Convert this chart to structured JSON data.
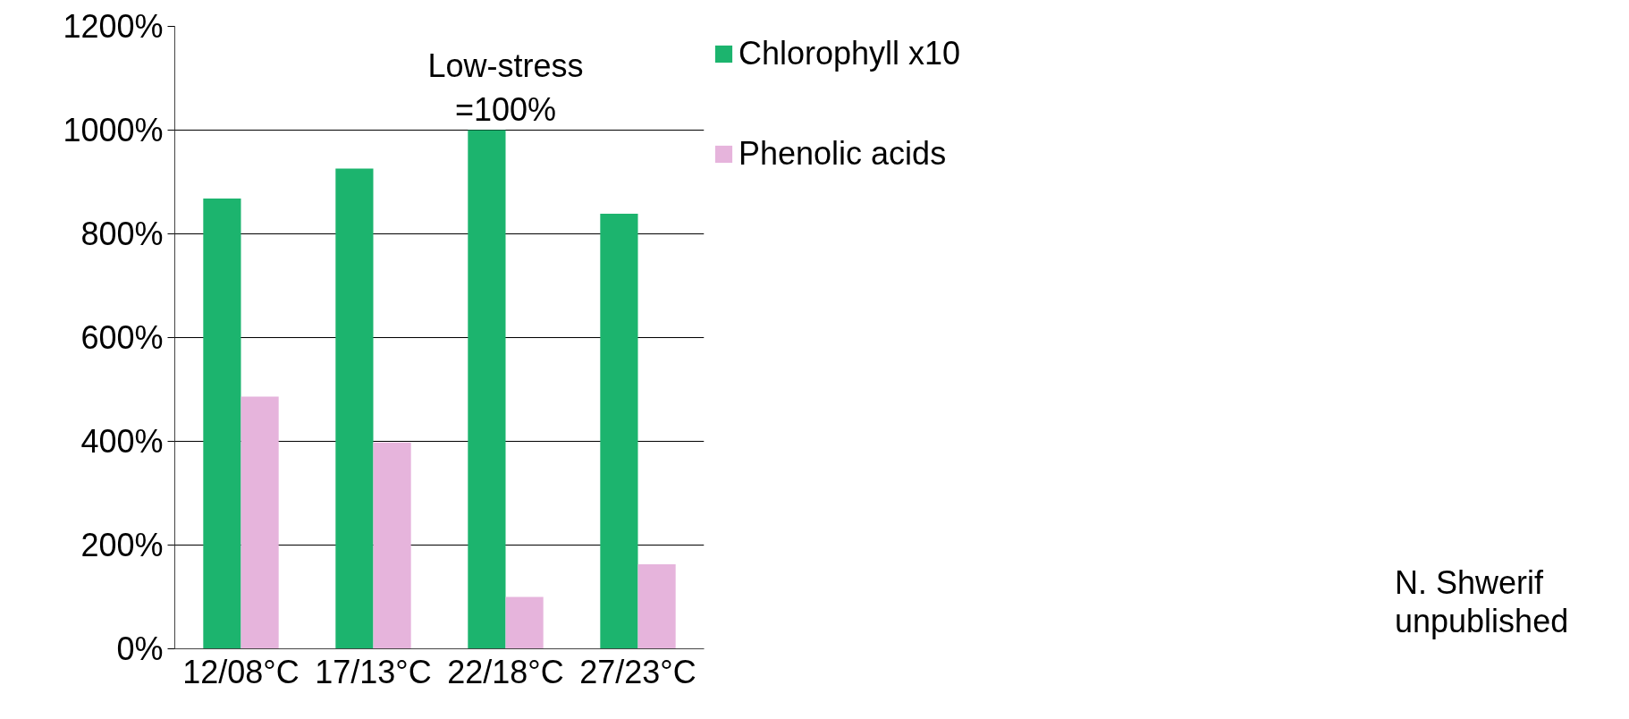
{
  "chart_data": {
    "type": "bar",
    "categories": [
      "12/08°C",
      "17/13°C",
      "22/18°C",
      "27/23°C"
    ],
    "series": [
      {
        "name": "Chlorophyll x10",
        "color": "#1cb46e",
        "values": [
          868,
          926,
          1000,
          839
        ]
      },
      {
        "name": "Phenolic acids",
        "color": "#e6b4dc",
        "values": [
          486,
          398,
          100,
          163
        ]
      }
    ],
    "ylim": [
      0,
      1200
    ],
    "yticks": [
      {
        "value": 0,
        "label": "0%"
      },
      {
        "value": 200,
        "label": "200%"
      },
      {
        "value": 400,
        "label": "400%"
      },
      {
        "value": 600,
        "label": "600%"
      },
      {
        "value": 800,
        "label": "800%"
      },
      {
        "value": 1000,
        "label": "1000%"
      },
      {
        "value": 1200,
        "label": "1200%"
      }
    ],
    "grid": "y",
    "legend": "right",
    "annotations": [
      {
        "text": "Low-stress\n=100%",
        "x": "22/18°C",
        "y": 1000
      },
      "N. Shwerif\nunpublished"
    ]
  }
}
